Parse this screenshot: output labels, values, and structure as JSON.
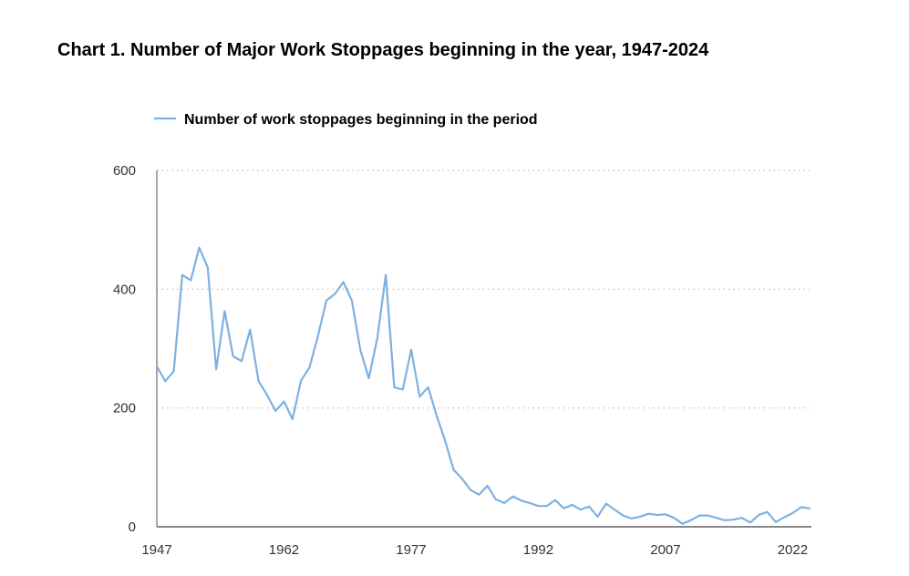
{
  "chart_data": {
    "type": "line",
    "title": "Chart 1. Number of Major Work Stoppages beginning in the year, 1947-2024",
    "xlabel": "",
    "ylabel": "",
    "xlim": [
      1947,
      2024
    ],
    "ylim": [
      0,
      600
    ],
    "yticks": [
      0,
      200,
      400,
      600
    ],
    "xticks": [
      1947,
      1962,
      1977,
      1992,
      2007,
      2022
    ],
    "grid": "horizontal-dotted",
    "legend_position": "top",
    "colors": {
      "series": "#7eb1e0",
      "axis": "#888888",
      "grid": "#bbbbbb"
    },
    "series": [
      {
        "name": "Number of work stoppages beginning in the period",
        "x": [
          1947,
          1948,
          1949,
          1950,
          1951,
          1952,
          1953,
          1954,
          1955,
          1956,
          1957,
          1958,
          1959,
          1960,
          1961,
          1962,
          1963,
          1964,
          1965,
          1966,
          1967,
          1968,
          1969,
          1970,
          1971,
          1972,
          1973,
          1974,
          1975,
          1976,
          1977,
          1978,
          1979,
          1980,
          1981,
          1982,
          1983,
          1984,
          1985,
          1986,
          1987,
          1988,
          1989,
          1990,
          1991,
          1992,
          1993,
          1994,
          1995,
          1996,
          1997,
          1998,
          1999,
          2000,
          2001,
          2002,
          2003,
          2004,
          2005,
          2006,
          2007,
          2008,
          2009,
          2010,
          2011,
          2012,
          2013,
          2014,
          2015,
          2016,
          2017,
          2018,
          2019,
          2020,
          2021,
          2022,
          2023,
          2024
        ],
        "values": [
          270,
          245,
          262,
          424,
          415,
          470,
          437,
          265,
          363,
          287,
          279,
          332,
          245,
          222,
          195,
          211,
          181,
          246,
          268,
          321,
          381,
          392,
          412,
          381,
          298,
          250,
          317,
          424,
          235,
          231,
          298,
          219,
          235,
          187,
          145,
          96,
          81,
          62,
          54,
          69,
          46,
          40,
          51,
          44,
          40,
          35,
          35,
          45,
          31,
          37,
          29,
          34,
          17,
          39,
          29,
          19,
          14,
          17,
          22,
          20,
          21,
          15,
          5,
          11,
          19,
          19,
          15,
          11,
          12,
          15,
          7,
          20,
          25,
          8,
          16,
          23,
          33,
          31
        ]
      }
    ]
  }
}
